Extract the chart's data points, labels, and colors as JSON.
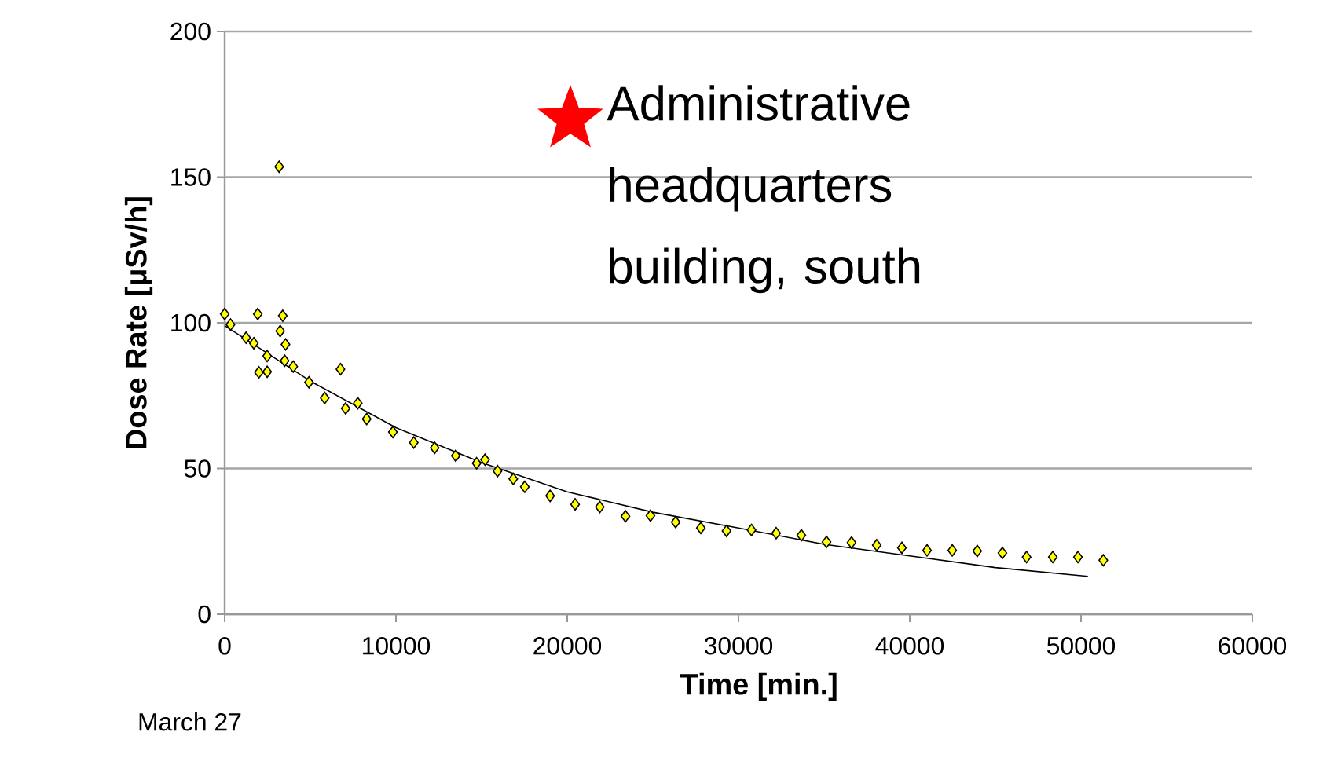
{
  "chart_data": {
    "type": "scatter",
    "xlabel": "Time   [min.]",
    "ylabel": "Dose Rate  [μSv/h]",
    "annotations": [
      "March 27",
      "Administrative headquarters building, south"
    ],
    "xlim": [
      0,
      60000
    ],
    "xticks": [
      0,
      10000,
      20000,
      30000,
      40000,
      50000,
      60000
    ],
    "ylim": [
      0,
      200
    ],
    "yticks": [
      0,
      50,
      100,
      150,
      200
    ],
    "grid": "y",
    "marker": "diamond",
    "series": [
      {
        "color": "#ffff00",
        "x": [
          0,
          340,
          1250,
          1700,
          1930,
          2000,
          2480,
          2480,
          3180,
          3240,
          3390,
          3550,
          3500,
          4000,
          4920,
          5840,
          6760,
          7060,
          7770,
          8290,
          9820,
          11040,
          12260,
          13490,
          14710,
          15200,
          15930,
          16850,
          17520,
          19000,
          20460,
          21900,
          23400,
          24860,
          26330,
          27800,
          29300,
          30760,
          32200,
          33670,
          35140,
          36600,
          38070,
          39540,
          41010,
          42480,
          43940,
          45410,
          46820,
          48350,
          49820,
          51300
        ],
        "values": [
          103,
          99.4,
          94.9,
          93,
          103,
          83,
          88.6,
          83.2,
          153.6,
          97.2,
          102.4,
          92.6,
          87,
          85,
          79.6,
          74.2,
          84.1,
          70.6,
          72.4,
          67,
          62.5,
          58.9,
          57.1,
          54.4,
          51.8,
          53,
          49.1,
          46.4,
          43.7,
          40.6,
          37.7,
          36.8,
          33.6,
          33.8,
          31.6,
          29.6,
          28.6,
          28.9,
          27.8,
          27.1,
          24.8,
          24.6,
          23.7,
          22.8,
          21.9,
          21.9,
          21.7,
          21,
          19.6,
          19.6,
          19.6,
          18.5
        ]
      },
      {
        "type": "line",
        "color": "#000000",
        "marker": "none",
        "x": [
          0,
          5000,
          10000,
          15000,
          20000,
          25000,
          30000,
          35000,
          40000,
          45000,
          50400
        ],
        "values": [
          99,
          80,
          64,
          52,
          42,
          35,
          29.6,
          24,
          20,
          16,
          13
        ]
      }
    ]
  }
}
